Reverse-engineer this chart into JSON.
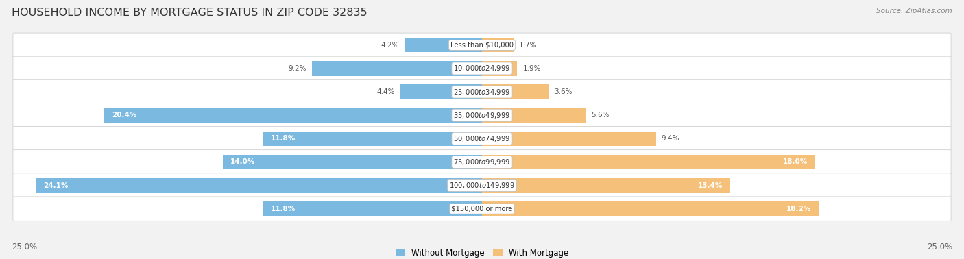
{
  "title": "HOUSEHOLD INCOME BY MORTGAGE STATUS IN ZIP CODE 32835",
  "source": "Source: ZipAtlas.com",
  "categories": [
    "Less than $10,000",
    "$10,000 to $24,999",
    "$25,000 to $34,999",
    "$35,000 to $49,999",
    "$50,000 to $74,999",
    "$75,000 to $99,999",
    "$100,000 to $149,999",
    "$150,000 or more"
  ],
  "without_mortgage": [
    4.2,
    9.2,
    4.4,
    20.4,
    11.8,
    14.0,
    24.1,
    11.8
  ],
  "with_mortgage": [
    1.7,
    1.9,
    3.6,
    5.6,
    9.4,
    18.0,
    13.4,
    18.2
  ],
  "color_without": "#7cb9e0",
  "color_with": "#f5c07a",
  "axis_max": 25.0,
  "title_fontsize": 11.5,
  "legend_label_without": "Without Mortgage",
  "legend_label_with": "With Mortgage",
  "axis_label_left": "25.0%",
  "axis_label_right": "25.0%"
}
